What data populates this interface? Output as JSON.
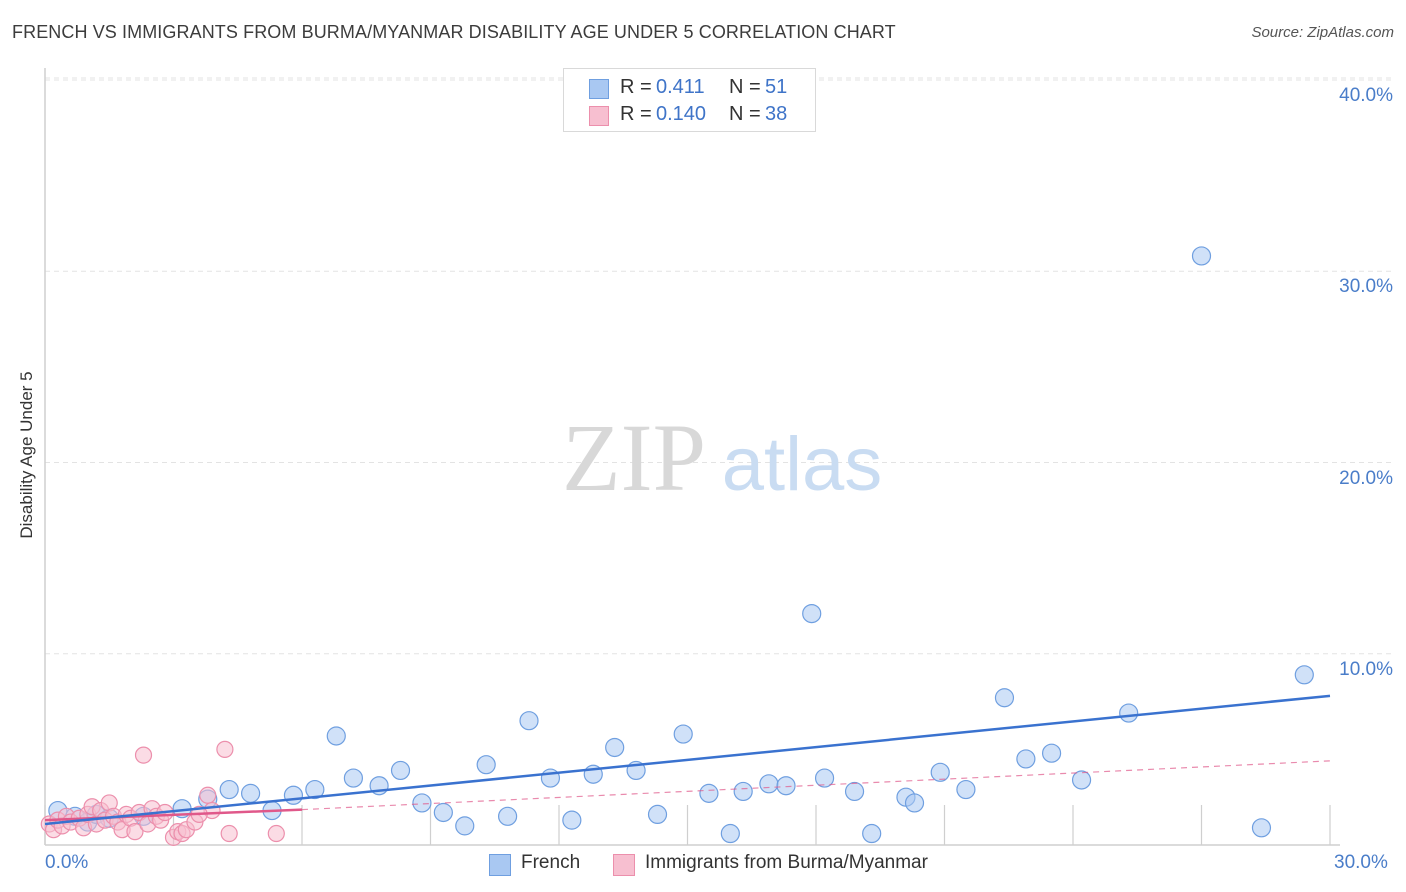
{
  "title": "FRENCH VS IMMIGRANTS FROM BURMA/MYANMAR DISABILITY AGE UNDER 5 CORRELATION CHART",
  "source": "Source: ZipAtlas.com",
  "watermark": {
    "zip": "ZIP",
    "atlas": "atlas"
  },
  "stats": {
    "rows": [
      {
        "r_label": "R =",
        "r_value": "0.411",
        "n_label": "N =",
        "n_value": "51",
        "color": "#a9c8f2",
        "border": "#6f9fe0"
      },
      {
        "r_label": "R =",
        "r_value": "0.140",
        "n_label": "N =",
        "n_value": "38",
        "color": "#f7bfd0",
        "border": "#ec8fac"
      }
    ]
  },
  "legend": {
    "items": [
      {
        "label": "French",
        "color": "#a9c8f2",
        "border": "#6f9fe0"
      },
      {
        "label": "Immigrants from Burma/Myanmar",
        "color": "#f7bfd0",
        "border": "#ec8fac"
      }
    ]
  },
  "chart_data": {
    "type": "scatter",
    "title": "FRENCH VS IMMIGRANTS FROM BURMA/MYANMAR DISABILITY AGE UNDER 5 CORRELATION CHART",
    "xlabel": "",
    "ylabel": "Disability Age Under 5",
    "xlim": [
      0,
      30
    ],
    "ylim": [
      0,
      40
    ],
    "x_tick_labels": [
      "0.0%",
      "30.0%"
    ],
    "y_tick_labels": [
      "10.0%",
      "20.0%",
      "30.0%",
      "40.0%"
    ],
    "y_ticks": [
      10,
      20,
      30,
      40
    ],
    "grid": true,
    "series": [
      {
        "name": "French",
        "color": "#a9c8f2",
        "stroke": "#6f9fe0",
        "trend_color": "#3a72cf",
        "trend": {
          "x0": 0,
          "y0": 1.1,
          "x1": 30,
          "y1": 7.8
        },
        "points": [
          [
            0.3,
            1.8
          ],
          [
            0.7,
            1.5
          ],
          [
            1.0,
            1.2
          ],
          [
            1.2,
            1.6
          ],
          [
            1.5,
            1.4
          ],
          [
            2.3,
            1.5
          ],
          [
            3.2,
            1.9
          ],
          [
            3.8,
            2.4
          ],
          [
            4.3,
            2.9
          ],
          [
            4.8,
            2.7
          ],
          [
            5.3,
            1.8
          ],
          [
            5.8,
            2.6
          ],
          [
            6.3,
            2.9
          ],
          [
            6.8,
            5.7
          ],
          [
            7.2,
            3.5
          ],
          [
            7.8,
            3.1
          ],
          [
            8.3,
            3.9
          ],
          [
            8.8,
            2.2
          ],
          [
            9.3,
            1.7
          ],
          [
            9.8,
            1.0
          ],
          [
            10.3,
            4.2
          ],
          [
            10.8,
            1.5
          ],
          [
            11.3,
            6.5
          ],
          [
            11.8,
            3.5
          ],
          [
            12.3,
            1.3
          ],
          [
            12.8,
            3.7
          ],
          [
            13.3,
            5.1
          ],
          [
            13.8,
            3.9
          ],
          [
            14.3,
            1.6
          ],
          [
            14.9,
            5.8
          ],
          [
            15.5,
            2.7
          ],
          [
            16.0,
            0.6
          ],
          [
            16.3,
            2.8
          ],
          [
            16.9,
            3.2
          ],
          [
            17.3,
            3.1
          ],
          [
            17.9,
            12.1
          ],
          [
            18.2,
            3.5
          ],
          [
            18.9,
            2.8
          ],
          [
            19.3,
            0.6
          ],
          [
            20.1,
            2.5
          ],
          [
            20.3,
            2.2
          ],
          [
            20.9,
            3.8
          ],
          [
            21.5,
            2.9
          ],
          [
            22.4,
            7.7
          ],
          [
            22.9,
            4.5
          ],
          [
            23.5,
            4.8
          ],
          [
            24.2,
            3.4
          ],
          [
            25.3,
            6.9
          ],
          [
            27.0,
            30.8
          ],
          [
            28.4,
            0.9
          ],
          [
            29.4,
            8.9
          ]
        ]
      },
      {
        "name": "Immigrants from Burma/Myanmar",
        "color": "#f7bfd0",
        "stroke": "#ec8fac",
        "trend_color": "#e0588a",
        "trend": {
          "x0": 0,
          "y0": 1.3,
          "x1": 6.0,
          "y1": 1.85
        },
        "trend_ext": {
          "x0": 6.0,
          "y0": 1.85,
          "x1": 30,
          "y1": 4.4
        },
        "points": [
          [
            0.1,
            1.1
          ],
          [
            0.2,
            0.8
          ],
          [
            0.3,
            1.3
          ],
          [
            0.4,
            1.0
          ],
          [
            0.5,
            1.5
          ],
          [
            0.6,
            1.2
          ],
          [
            0.8,
            1.4
          ],
          [
            0.9,
            0.9
          ],
          [
            1.0,
            1.6
          ],
          [
            1.1,
            2.0
          ],
          [
            1.2,
            1.1
          ],
          [
            1.3,
            1.8
          ],
          [
            1.4,
            1.3
          ],
          [
            1.5,
            2.2
          ],
          [
            1.6,
            1.5
          ],
          [
            1.7,
            1.2
          ],
          [
            1.8,
            0.8
          ],
          [
            1.9,
            1.6
          ],
          [
            2.0,
            1.4
          ],
          [
            2.1,
            0.7
          ],
          [
            2.2,
            1.7
          ],
          [
            2.3,
            4.7
          ],
          [
            2.4,
            1.1
          ],
          [
            2.5,
            1.9
          ],
          [
            2.6,
            1.5
          ],
          [
            2.7,
            1.3
          ],
          [
            2.8,
            1.7
          ],
          [
            3.0,
            0.4
          ],
          [
            3.1,
            0.7
          ],
          [
            3.2,
            0.6
          ],
          [
            3.3,
            0.8
          ],
          [
            3.5,
            1.2
          ],
          [
            3.8,
            2.6
          ],
          [
            3.9,
            1.8
          ],
          [
            4.2,
            5.0
          ],
          [
            4.3,
            0.6
          ],
          [
            5.4,
            0.6
          ],
          [
            3.6,
            1.6
          ]
        ]
      }
    ]
  }
}
